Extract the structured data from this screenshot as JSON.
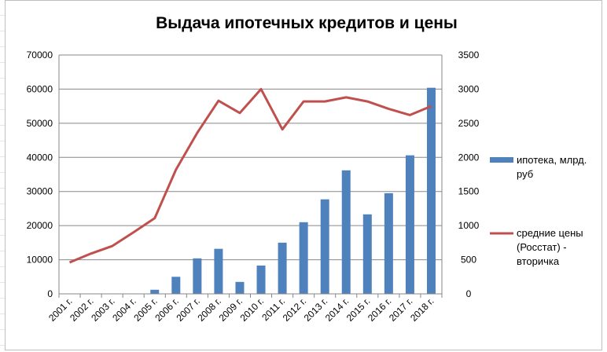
{
  "chart_data": {
    "type": "bar",
    "title": "Выдача ипотечных кредитов и цены",
    "xlabel": "",
    "ylabel": "",
    "categories": [
      "2001 г.",
      "2002 г.",
      "2003 г.",
      "2004 г.",
      "2005 г.",
      "2006 г.",
      "2007 г.",
      "2008 г.",
      "2009 г.",
      "2010 г.",
      "2011 г.",
      "2012 г.",
      "2013 г.",
      "2014 г.",
      "2015 г.",
      "2016 г.",
      "2017 г.",
      "2018 г."
    ],
    "series": [
      {
        "name": "ипотека, млрд. руб",
        "type": "bar",
        "axis": "left",
        "color": "#4f81bd",
        "values": [
          0,
          0,
          0,
          0,
          1200,
          5000,
          10400,
          13200,
          3500,
          8300,
          15000,
          21000,
          27700,
          36200,
          23300,
          29500,
          40600,
          60400
        ]
      },
      {
        "name": "средние цены (Росстат) - вторичка",
        "type": "line",
        "axis": "right",
        "color": "#c0504d",
        "values": [
          460,
          590,
          700,
          900,
          1110,
          1820,
          2360,
          2830,
          2650,
          3000,
          2410,
          2820,
          2820,
          2880,
          2820,
          2710,
          2620,
          2750
        ]
      }
    ],
    "y_left": {
      "range": [
        0,
        70000
      ],
      "ticks": [
        "0",
        "10000",
        "20000",
        "30000",
        "40000",
        "50000",
        "60000",
        "70000"
      ]
    },
    "y_right": {
      "range": [
        0,
        3500
      ],
      "ticks": [
        "0",
        "500",
        "1000",
        "1500",
        "2000",
        "2500",
        "3000",
        "3500"
      ]
    },
    "grid": true,
    "legend_position": "right",
    "legend": {
      "bar_lines": [
        "ипотека, млрд.",
        "руб"
      ],
      "line_lines": [
        "средние цены",
        "(Росстат) -",
        "вторичка"
      ]
    }
  }
}
